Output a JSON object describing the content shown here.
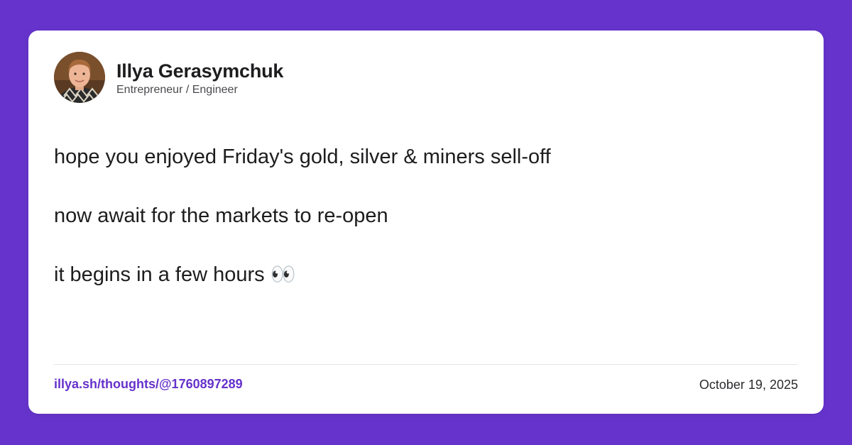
{
  "colors": {
    "background": "#6634CC",
    "card": "#ffffff",
    "link": "#6632CA",
    "text": "#1d1d1f"
  },
  "author": {
    "name": "Illya Gerasymchuk",
    "role": "Entrepreneur / Engineer",
    "avatar_icon": "avatar-photo"
  },
  "post": {
    "lines": [
      "hope you enjoyed Friday's gold, silver & miners sell-off",
      "now await for the markets to re-open",
      "it begins in a few hours 👀"
    ]
  },
  "footer": {
    "link_text": "illya.sh/thoughts/@1760897289",
    "date": "October 19, 2025"
  }
}
